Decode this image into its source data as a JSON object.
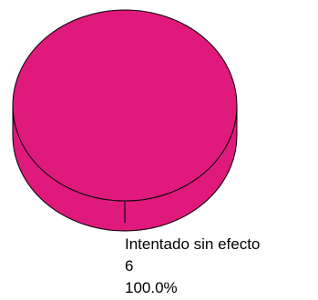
{
  "chart_data": {
    "type": "pie",
    "style": "3d",
    "title": "",
    "slices": [
      {
        "label": "Intentado sin efecto",
        "value": 6,
        "percent": "100.0%",
        "value_text": "6",
        "color": "#e0197d"
      }
    ],
    "legend": "none"
  },
  "colors": {
    "slice_fill": "#e0197d",
    "outline": "#000000",
    "background": "#ffffff"
  }
}
